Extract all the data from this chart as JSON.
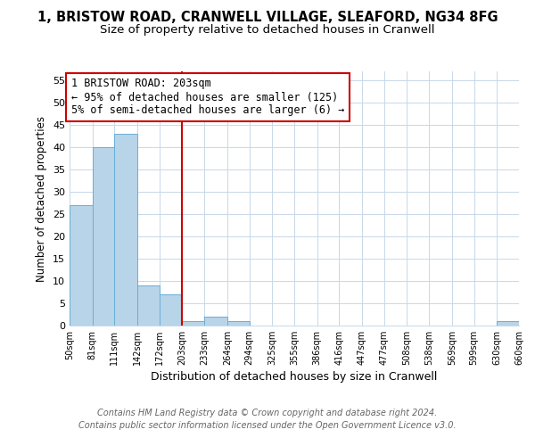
{
  "title1": "1, BRISTOW ROAD, CRANWELL VILLAGE, SLEAFORD, NG34 8FG",
  "title2": "Size of property relative to detached houses in Cranwell",
  "xlabel": "Distribution of detached houses by size in Cranwell",
  "ylabel": "Number of detached properties",
  "bar_edges": [
    50,
    81,
    111,
    142,
    172,
    203,
    233,
    264,
    294,
    325,
    355,
    386,
    416,
    447,
    477,
    508,
    538,
    569,
    599,
    630,
    660
  ],
  "bar_heights": [
    27,
    40,
    43,
    9,
    7,
    1,
    2,
    1,
    0,
    0,
    0,
    0,
    0,
    0,
    0,
    0,
    0,
    0,
    0,
    1
  ],
  "bar_color": "#b8d4e8",
  "bar_edgecolor": "#6aaed6",
  "vline_x": 203,
  "vline_color": "#cc0000",
  "annotation_text": "1 BRISTOW ROAD: 203sqm\n← 95% of detached houses are smaller (125)\n5% of semi-detached houses are larger (6) →",
  "annotation_box_edgecolor": "#cc0000",
  "annotation_box_facecolor": "#ffffff",
  "ylim": [
    0,
    57
  ],
  "yticks": [
    0,
    5,
    10,
    15,
    20,
    25,
    30,
    35,
    40,
    45,
    50,
    55
  ],
  "footer1": "Contains HM Land Registry data © Crown copyright and database right 2024.",
  "footer2": "Contains public sector information licensed under the Open Government Licence v3.0.",
  "bg_color": "#ffffff",
  "grid_color": "#c8d8e8",
  "title1_fontsize": 10.5,
  "title2_fontsize": 9.5,
  "annotation_fontsize": 8.5,
  "footer_fontsize": 7.0
}
